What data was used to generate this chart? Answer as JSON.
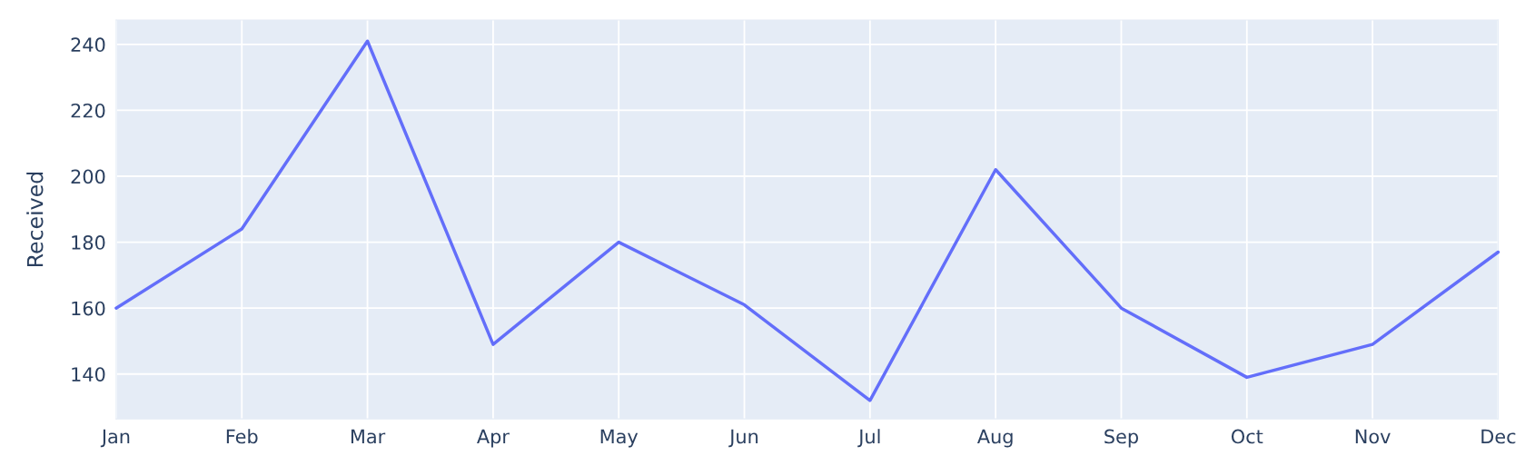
{
  "chart_data": {
    "type": "line",
    "ylabel": "Received",
    "categories": [
      "Jan",
      "Feb",
      "Mar",
      "Apr",
      "May",
      "Jun",
      "Jul",
      "Aug",
      "Sep",
      "Oct",
      "Nov",
      "Dec"
    ],
    "series": [
      {
        "color": "#636efa",
        "values": [
          160,
          184,
          241,
          149,
          180,
          161,
          132,
          202,
          160,
          139,
          149,
          177
        ]
      }
    ],
    "ylim": [
      126.4,
      247.4
    ],
    "yticks": [
      140,
      160,
      180,
      200,
      220,
      240
    ],
    "grid": true
  }
}
